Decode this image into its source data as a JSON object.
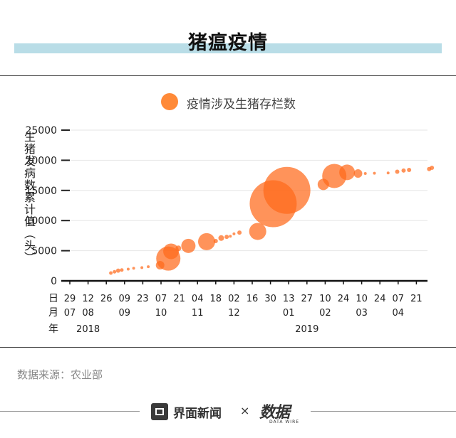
{
  "header": {
    "title": "猪瘟疫情"
  },
  "source_text": "数据来源：农业部",
  "footer": {
    "brand": "界面新闻",
    "separator": "×",
    "partner": "数据",
    "partner_sub": "DATA WIRE"
  },
  "colors": {
    "bubble": "#ff6a1a",
    "legend": "#ff8a38",
    "band": "#b9dde7",
    "axis": "#222222"
  },
  "chart_data": {
    "type": "scatter",
    "legend": [
      "疫情涉及生猪存栏数"
    ],
    "ylabel": "生猪发病数累计值（头）",
    "ylim": [
      0,
      25000
    ],
    "yticks": [
      0,
      5000,
      10000,
      15000,
      20000,
      25000
    ],
    "x_day_labels": [
      "29",
      "12",
      "26",
      "09",
      "23",
      "07",
      "21",
      "04",
      "18",
      "02",
      "16",
      "30",
      "13",
      "27",
      "10",
      "24",
      "10",
      "24",
      "07",
      "21"
    ],
    "x_month_labels": [
      {
        "text": "07",
        "tick": 0
      },
      {
        "text": "08",
        "tick": 1
      },
      {
        "text": "09",
        "tick": 3
      },
      {
        "text": "10",
        "tick": 5
      },
      {
        "text": "11",
        "tick": 7
      },
      {
        "text": "12",
        "tick": 9
      },
      {
        "text": "01",
        "tick": 12
      },
      {
        "text": "02",
        "tick": 14
      },
      {
        "text": "03",
        "tick": 16
      },
      {
        "text": "04",
        "tick": 18
      }
    ],
    "x_year_labels": [
      {
        "text": "2018",
        "tick": 1
      },
      {
        "text": "2019",
        "tick": 13
      }
    ],
    "axis_prefix": [
      "日",
      "月",
      "年"
    ],
    "points": [
      {
        "x": 2.25,
        "y": 1300,
        "r": 2.5
      },
      {
        "x": 2.45,
        "y": 1500,
        "r": 2.5
      },
      {
        "x": 2.65,
        "y": 1700,
        "r": 3
      },
      {
        "x": 2.85,
        "y": 1800,
        "r": 2.5
      },
      {
        "x": 3.2,
        "y": 1950,
        "r": 2
      },
      {
        "x": 3.5,
        "y": 2100,
        "r": 2
      },
      {
        "x": 3.95,
        "y": 2200,
        "r": 2
      },
      {
        "x": 4.3,
        "y": 2350,
        "r": 2
      },
      {
        "x": 4.95,
        "y": 2600,
        "r": 6
      },
      {
        "x": 5.4,
        "y": 3700,
        "r": 17
      },
      {
        "x": 5.55,
        "y": 4900,
        "r": 11
      },
      {
        "x": 5.95,
        "y": 5400,
        "r": 4
      },
      {
        "x": 6.5,
        "y": 5800,
        "r": 10
      },
      {
        "x": 7.5,
        "y": 6500,
        "r": 12
      },
      {
        "x": 8.0,
        "y": 6600,
        "r": 3
      },
      {
        "x": 8.3,
        "y": 7100,
        "r": 4
      },
      {
        "x": 8.6,
        "y": 7300,
        "r": 3
      },
      {
        "x": 8.8,
        "y": 7400,
        "r": 2
      },
      {
        "x": 9.0,
        "y": 7800,
        "r": 2
      },
      {
        "x": 9.3,
        "y": 8000,
        "r": 3
      },
      {
        "x": 10.3,
        "y": 8200,
        "r": 12
      },
      {
        "x": 11.15,
        "y": 12800,
        "r": 33
      },
      {
        "x": 11.9,
        "y": 15000,
        "r": 33
      },
      {
        "x": 13.9,
        "y": 16000,
        "r": 8
      },
      {
        "x": 14.5,
        "y": 17400,
        "r": 17
      },
      {
        "x": 15.2,
        "y": 18000,
        "r": 11
      },
      {
        "x": 15.8,
        "y": 17800,
        "r": 6
      },
      {
        "x": 16.2,
        "y": 17800,
        "r": 2
      },
      {
        "x": 16.7,
        "y": 17850,
        "r": 2
      },
      {
        "x": 17.45,
        "y": 17900,
        "r": 2
      },
      {
        "x": 17.95,
        "y": 18100,
        "r": 3
      },
      {
        "x": 18.3,
        "y": 18300,
        "r": 3
      },
      {
        "x": 18.6,
        "y": 18400,
        "r": 3
      },
      {
        "x": 19.7,
        "y": 18550,
        "r": 3
      },
      {
        "x": 19.85,
        "y": 18750,
        "r": 3
      }
    ]
  }
}
